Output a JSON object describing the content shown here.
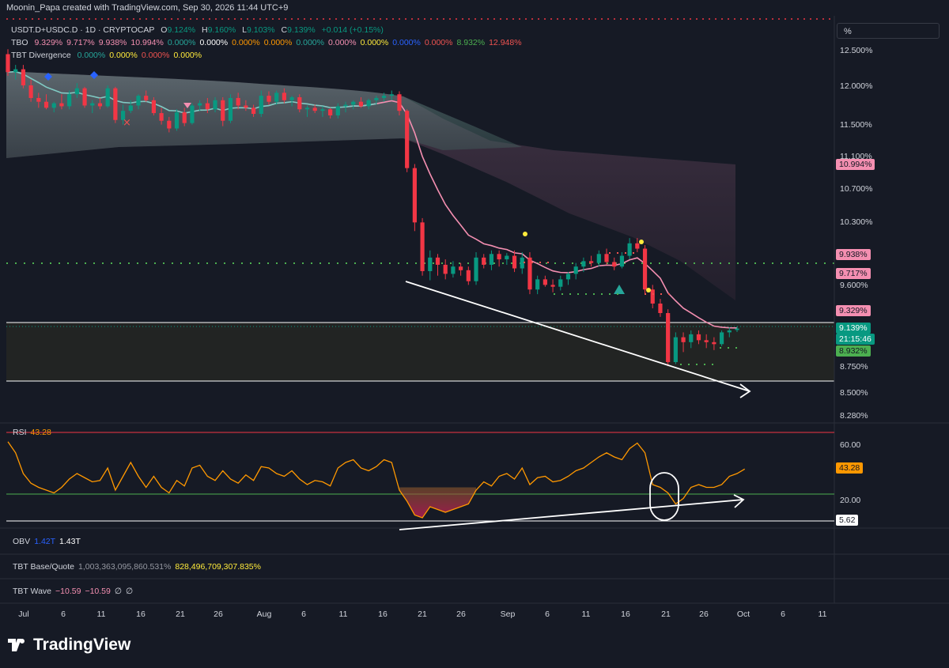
{
  "header": {
    "text": "Moonin_Papa created with TradingView.com, Sep 30, 2026 11:44 UTC+9"
  },
  "legend": {
    "symbol": "USDT.D+USDC.D · 1D · CRYPTOCAP",
    "o_label": "O",
    "o": "9.124%",
    "h_label": "H",
    "h": "9.160%",
    "l_label": "L",
    "l": "9.103%",
    "c_label": "C",
    "c": "9.139%",
    "change": "+0.014 (+0.15%)",
    "tbo_label": "TBO",
    "tbo_values": [
      "9.329%",
      "9.717%",
      "9.938%",
      "10.994%",
      "0.000%",
      "0.000%",
      "0.000%",
      "0.000%",
      "0.000%",
      "0.000%",
      "0.000%",
      "0.000%",
      "0.000%",
      "8.932%",
      "12.948%"
    ],
    "tbo_colors": [
      "#f48fb1",
      "#f48fb1",
      "#f48fb1",
      "#f48fb1",
      "#26a69a",
      "#ffffff",
      "#ff9800",
      "#ff9800",
      "#26a69a",
      "#f48fb1",
      "#ffeb3b",
      "#2962ff",
      "#ef5350",
      "#4caf50",
      "#ef5350"
    ],
    "div_label": "TBT Divergence",
    "div_values": [
      "0.000%",
      "0.000%",
      "0.000%",
      "0.000%"
    ],
    "div_colors": [
      "#26a69a",
      "#ffeb3b",
      "#ef5350",
      "#ffeb3b"
    ]
  },
  "axis_unit_button": "%",
  "price_ticks": [
    "12.500%",
    "12.000%",
    "11.500%",
    "11.100%",
    "10.700%",
    "10.300%",
    "9.600%",
    "8.750%",
    "8.500%",
    "8.280%"
  ],
  "price_tags": [
    {
      "label": "10.994%",
      "bg": "#f48fb1",
      "fg": "#131722"
    },
    {
      "label": "9.938%",
      "bg": "#f48fb1",
      "fg": "#131722"
    },
    {
      "label": "9.717%",
      "bg": "#f48fb1",
      "fg": "#131722"
    },
    {
      "label": "9.329%",
      "bg": "#f48fb1",
      "fg": "#131722"
    },
    {
      "label": "9.139%",
      "bg": "#089981",
      "fg": "#ffffff"
    },
    {
      "label": "21:15:46",
      "bg": "#089981",
      "fg": "#ffffff"
    },
    {
      "label": "8.932%",
      "bg": "#4caf50",
      "fg": "#131722"
    }
  ],
  "rsi": {
    "label": "RSI",
    "value": "43.28",
    "ticks": [
      "60.00",
      "20.00"
    ],
    "tag": "43.28",
    "min_tag": "5.62"
  },
  "obv": {
    "label": "OBV",
    "v1": "1.42T",
    "v2": "1.43T"
  },
  "base_quote": {
    "label": "TBT Base/Quote",
    "v1": "1,003,363,095,860.531%",
    "v2": "828,496,709,307.835%"
  },
  "wave": {
    "label": "TBT Wave",
    "v1": "−10.59",
    "v2": "−10.59",
    "v3": "∅",
    "v4": "∅"
  },
  "x_ticks": [
    "Jul",
    "6",
    "11",
    "16",
    "21",
    "26",
    "Aug",
    "6",
    "11",
    "16",
    "21",
    "26",
    "Sep",
    "6",
    "11",
    "16",
    "21",
    "26",
    "Oct",
    "6",
    "11"
  ],
  "brand": "TradingView",
  "colors": {
    "bg": "#161a25",
    "up": "#089981",
    "down": "#f23645",
    "pink": "#f48fb1",
    "rsi": "#ff9800",
    "cloud": "#5d7a78"
  },
  "chart_data": {
    "type": "candlestick",
    "title": "USDT.D+USDC.D · 1D · CRYPTOCAP",
    "ylim": [
      8.2,
      12.8
    ],
    "log_scale": true,
    "x_start": "2026-07-01",
    "x_end": "2026-09-30",
    "ohlc": [
      [
        12.45,
        12.52,
        12.15,
        12.2
      ],
      [
        12.2,
        12.3,
        12.1,
        12.24
      ],
      [
        12.24,
        12.3,
        11.98,
        12.02
      ],
      [
        12.02,
        12.1,
        11.8,
        11.85
      ],
      [
        11.85,
        11.92,
        11.72,
        11.8
      ],
      [
        11.8,
        11.9,
        11.7,
        11.72
      ],
      [
        11.72,
        11.8,
        11.66,
        11.78
      ],
      [
        11.78,
        11.9,
        11.7,
        11.74
      ],
      [
        11.74,
        11.95,
        11.7,
        11.9
      ],
      [
        11.9,
        12.05,
        11.85,
        11.98
      ],
      [
        11.98,
        12.0,
        11.72,
        11.75
      ],
      [
        11.75,
        11.82,
        11.65,
        11.78
      ],
      [
        11.78,
        11.85,
        11.7,
        11.74
      ],
      [
        11.74,
        12.02,
        11.72,
        11.98
      ],
      [
        11.98,
        12.0,
        11.52,
        11.56
      ],
      [
        11.56,
        11.76,
        11.5,
        11.68
      ],
      [
        11.68,
        11.82,
        11.65,
        11.75
      ],
      [
        11.75,
        11.9,
        11.7,
        11.88
      ],
      [
        11.88,
        11.95,
        11.8,
        11.82
      ],
      [
        11.82,
        11.86,
        11.62,
        11.65
      ],
      [
        11.65,
        11.72,
        11.5,
        11.55
      ],
      [
        11.55,
        11.6,
        11.4,
        11.45
      ],
      [
        11.45,
        11.7,
        11.42,
        11.66
      ],
      [
        11.66,
        11.72,
        11.48,
        11.52
      ],
      [
        11.52,
        11.78,
        11.5,
        11.75
      ],
      [
        11.75,
        11.82,
        11.68,
        11.78
      ],
      [
        11.78,
        11.85,
        11.65,
        11.7
      ],
      [
        11.7,
        11.86,
        11.66,
        11.82
      ],
      [
        11.82,
        11.86,
        11.48,
        11.55
      ],
      [
        11.55,
        11.9,
        11.52,
        11.85
      ],
      [
        11.85,
        11.92,
        11.7,
        11.75
      ],
      [
        11.75,
        11.82,
        11.68,
        11.72
      ],
      [
        11.72,
        11.76,
        11.6,
        11.64
      ],
      [
        11.64,
        11.95,
        11.6,
        11.88
      ],
      [
        11.88,
        11.94,
        11.76,
        11.8
      ],
      [
        11.8,
        11.95,
        11.76,
        11.92
      ],
      [
        11.92,
        11.98,
        11.78,
        11.82
      ],
      [
        11.82,
        11.88,
        11.74,
        11.86
      ],
      [
        11.86,
        11.9,
        11.66,
        11.7
      ],
      [
        11.7,
        11.75,
        11.6,
        11.72
      ],
      [
        11.72,
        11.76,
        11.65,
        11.68
      ],
      [
        11.68,
        11.74,
        11.6,
        11.7
      ],
      [
        11.7,
        11.72,
        11.58,
        11.62
      ],
      [
        11.62,
        11.78,
        11.58,
        11.74
      ],
      [
        11.74,
        11.8,
        11.66,
        11.76
      ],
      [
        11.76,
        11.82,
        11.7,
        11.8
      ],
      [
        11.8,
        11.86,
        11.72,
        11.74
      ],
      [
        11.74,
        11.84,
        11.7,
        11.82
      ],
      [
        11.82,
        11.88,
        11.76,
        11.85
      ],
      [
        11.85,
        11.92,
        11.8,
        11.88
      ],
      [
        11.88,
        11.95,
        11.82,
        11.9
      ],
      [
        11.9,
        11.94,
        11.62,
        11.68
      ],
      [
        11.68,
        11.7,
        10.9,
        10.95
      ],
      [
        10.95,
        11.0,
        10.2,
        10.3
      ],
      [
        10.3,
        10.35,
        9.7,
        9.75
      ],
      [
        9.75,
        9.98,
        9.65,
        9.9
      ],
      [
        9.9,
        9.94,
        9.7,
        9.82
      ],
      [
        9.82,
        9.88,
        9.66,
        9.72
      ],
      [
        9.72,
        9.86,
        9.68,
        9.8
      ],
      [
        9.8,
        9.84,
        9.7,
        9.76
      ],
      [
        9.76,
        9.8,
        9.6,
        9.64
      ],
      [
        9.64,
        9.96,
        9.6,
        9.9
      ],
      [
        9.9,
        9.94,
        9.78,
        9.82
      ],
      [
        9.82,
        9.98,
        9.76,
        9.94
      ],
      [
        9.94,
        9.98,
        9.8,
        9.88
      ],
      [
        9.88,
        9.95,
        9.82,
        9.92
      ],
      [
        9.92,
        9.98,
        9.74,
        9.78
      ],
      [
        9.78,
        9.96,
        9.72,
        9.9
      ],
      [
        9.9,
        9.96,
        9.5,
        9.55
      ],
      [
        9.55,
        9.7,
        9.5,
        9.66
      ],
      [
        9.66,
        9.7,
        9.58,
        9.6
      ],
      [
        9.6,
        9.66,
        9.52,
        9.58
      ],
      [
        9.58,
        9.7,
        9.54,
        9.66
      ],
      [
        9.66,
        9.74,
        9.6,
        9.72
      ],
      [
        9.72,
        9.84,
        9.66,
        9.8
      ],
      [
        9.8,
        9.9,
        9.74,
        9.86
      ],
      [
        9.86,
        9.92,
        9.8,
        9.84
      ],
      [
        9.84,
        9.98,
        9.8,
        9.94
      ],
      [
        9.94,
        10.0,
        9.82,
        9.85
      ],
      [
        9.85,
        9.9,
        9.76,
        9.8
      ],
      [
        9.8,
        9.96,
        9.78,
        9.92
      ],
      [
        9.92,
        10.12,
        9.88,
        10.06
      ],
      [
        10.06,
        10.12,
        9.96,
        10.0
      ],
      [
        10.0,
        10.04,
        9.5,
        9.55
      ],
      [
        9.55,
        9.6,
        9.35,
        9.4
      ],
      [
        9.4,
        9.45,
        9.26,
        9.3
      ],
      [
        9.3,
        9.34,
        8.76,
        8.8
      ],
      [
        8.8,
        9.1,
        8.78,
        9.05
      ],
      [
        9.05,
        9.1,
        8.9,
        9.0
      ],
      [
        9.0,
        9.12,
        8.94,
        9.08
      ],
      [
        9.08,
        9.12,
        8.98,
        9.02
      ],
      [
        9.02,
        9.08,
        8.94,
        9.0
      ],
      [
        9.0,
        9.05,
        8.92,
        8.98
      ],
      [
        8.98,
        9.12,
        8.96,
        9.1
      ],
      [
        9.1,
        9.15,
        9.05,
        9.12
      ],
      [
        9.124,
        9.16,
        9.103,
        9.139
      ]
    ],
    "rsi": [
      63,
      55,
      40,
      33,
      30,
      28,
      26,
      30,
      36,
      40,
      37,
      34,
      35,
      44,
      28,
      38,
      48,
      38,
      30,
      38,
      30,
      26,
      35,
      31,
      44,
      46,
      38,
      35,
      42,
      36,
      33,
      39,
      35,
      45,
      44,
      40,
      38,
      42,
      36,
      32,
      35,
      34,
      31,
      44,
      48,
      50,
      44,
      42,
      45,
      50,
      48,
      28,
      20,
      10,
      8,
      16,
      14,
      12,
      14,
      16,
      18,
      28,
      34,
      31,
      38,
      40,
      36,
      44,
      32,
      37,
      38,
      34,
      35,
      38,
      42,
      44,
      48,
      52,
      55,
      52,
      50,
      58,
      62,
      55,
      32,
      30,
      26,
      18,
      22,
      30,
      32,
      30,
      30,
      32,
      38,
      40,
      43.28
    ],
    "levels": {
      "upper_line": 9.22,
      "lower_line": 8.62,
      "dotted_green": 9.76
    },
    "annotations": [
      "descending trendline on price",
      "ascending trendline on RSI (bullish divergence)"
    ]
  }
}
